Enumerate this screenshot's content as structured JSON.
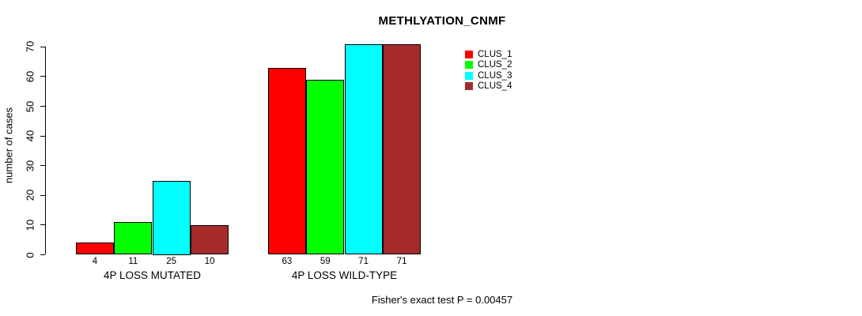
{
  "chart_data": {
    "type": "bar",
    "title": "METHLYATION_CNMF",
    "ylabel": "number of cases",
    "xlabel": "",
    "ylim": [
      0,
      70
    ],
    "yticks": [
      0,
      10,
      20,
      30,
      40,
      50,
      60,
      70
    ],
    "grid": false,
    "legend_position": "right",
    "categories": [
      "4P LOSS MUTATED",
      "4P LOSS WILD-TYPE"
    ],
    "series": [
      {
        "name": "CLUS_1",
        "color": "#ff0000",
        "values": [
          4,
          63
        ]
      },
      {
        "name": "CLUS_2",
        "color": "#00ff00",
        "values": [
          11,
          59
        ]
      },
      {
        "name": "CLUS_3",
        "color": "#00ffff",
        "values": [
          25,
          71
        ]
      },
      {
        "name": "CLUS_4",
        "color": "#a52a2a",
        "values": [
          10,
          71
        ]
      }
    ],
    "bar_value_labels": [
      [
        4,
        11,
        25,
        10
      ],
      [
        63,
        59,
        71,
        71
      ]
    ],
    "annotation": "Fisher's exact test P = 0.00457"
  },
  "colors": {
    "axis": "#000000",
    "text": "#000000",
    "background": "#ffffff"
  }
}
